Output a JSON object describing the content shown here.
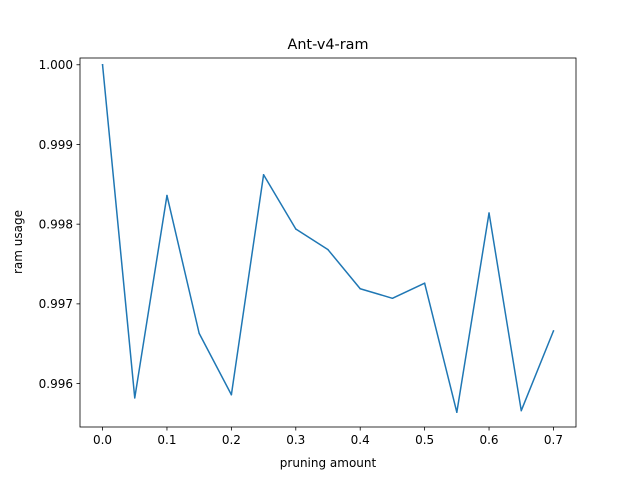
{
  "chart_data": {
    "type": "line",
    "title": "Ant-v4-ram",
    "xlabel": "pruning amount",
    "ylabel": "ram usage",
    "x": [
      0.0,
      0.05,
      0.1,
      0.15,
      0.2,
      0.25,
      0.3,
      0.35,
      0.4,
      0.45,
      0.5,
      0.55,
      0.6,
      0.65,
      0.7
    ],
    "series": [
      {
        "values": [
          1.0,
          0.99582,
          0.99836,
          0.99663,
          0.99586,
          0.99862,
          0.99794,
          0.99768,
          0.99719,
          0.99707,
          0.99726,
          0.99564,
          0.99814,
          0.99566,
          0.99666
        ],
        "color": "#1f77b4"
      }
    ],
    "xlim": [
      -0.035,
      0.735
    ],
    "ylim": [
      0.995455,
      1.000085
    ],
    "xticks": [
      0.0,
      0.1,
      0.2,
      0.3,
      0.4,
      0.5,
      0.6,
      0.7
    ],
    "xtick_labels": [
      "0.0",
      "0.1",
      "0.2",
      "0.3",
      "0.4",
      "0.5",
      "0.6",
      "0.7"
    ],
    "yticks": [
      0.996,
      0.997,
      0.998,
      0.999,
      1.0
    ],
    "ytick_labels": [
      "0.996",
      "0.997",
      "0.998",
      "0.999",
      "1.000"
    ],
    "grid": false,
    "legend": false
  }
}
